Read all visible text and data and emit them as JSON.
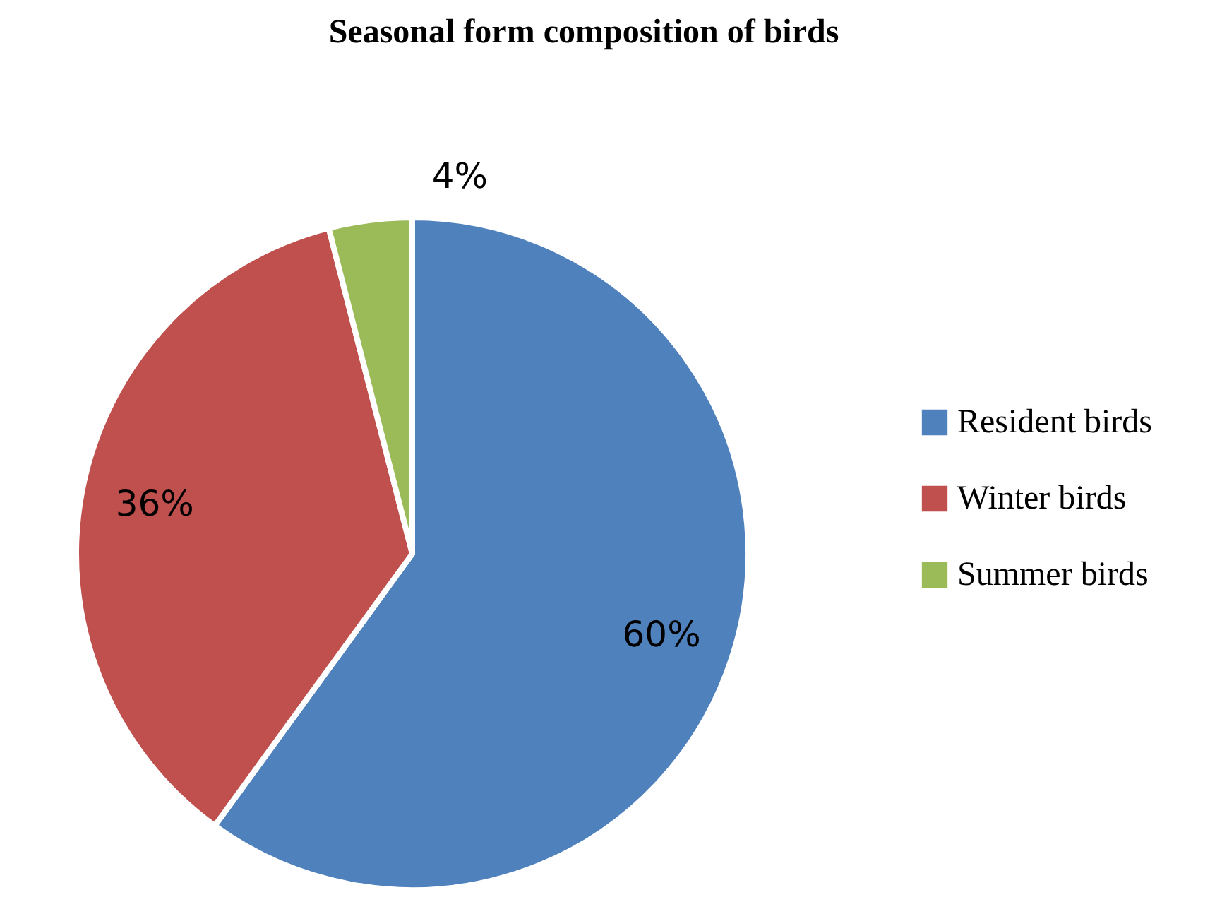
{
  "chart_data": {
    "type": "pie",
    "title": "Seasonal form composition of birds",
    "categories": [
      "Resident birds",
      "Winter birds",
      "Summer birds"
    ],
    "values": [
      60,
      36,
      4
    ],
    "colors": [
      "#4f81bd",
      "#c0504d",
      "#9bbb59"
    ],
    "value_labels": [
      "60%",
      "36%",
      "4%"
    ],
    "legend": "right"
  }
}
